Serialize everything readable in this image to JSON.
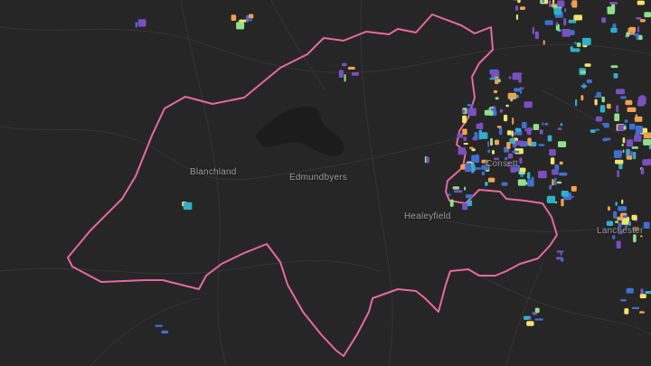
{
  "places": [
    {
      "id": "blanchland",
      "label": "Blanchland"
    },
    {
      "id": "edmundbyers",
      "label": "Edmundbyers"
    },
    {
      "id": "consett",
      "label": "Consett"
    },
    {
      "id": "healeyfield",
      "label": "Healeyfield"
    },
    {
      "id": "lanchester",
      "label": "Lanchester"
    }
  ],
  "colors": {
    "background": "#262626",
    "boundary": "#e8699e",
    "road": "#333333",
    "water": "#1c1c1c",
    "label": "#9a9a9a",
    "purple": "#7a4fc0",
    "blue": "#3f6fd0",
    "cyan": "#2fb0c8",
    "green": "#8fe08a",
    "yellow": "#f2e36a",
    "orange": "#f0a050"
  }
}
